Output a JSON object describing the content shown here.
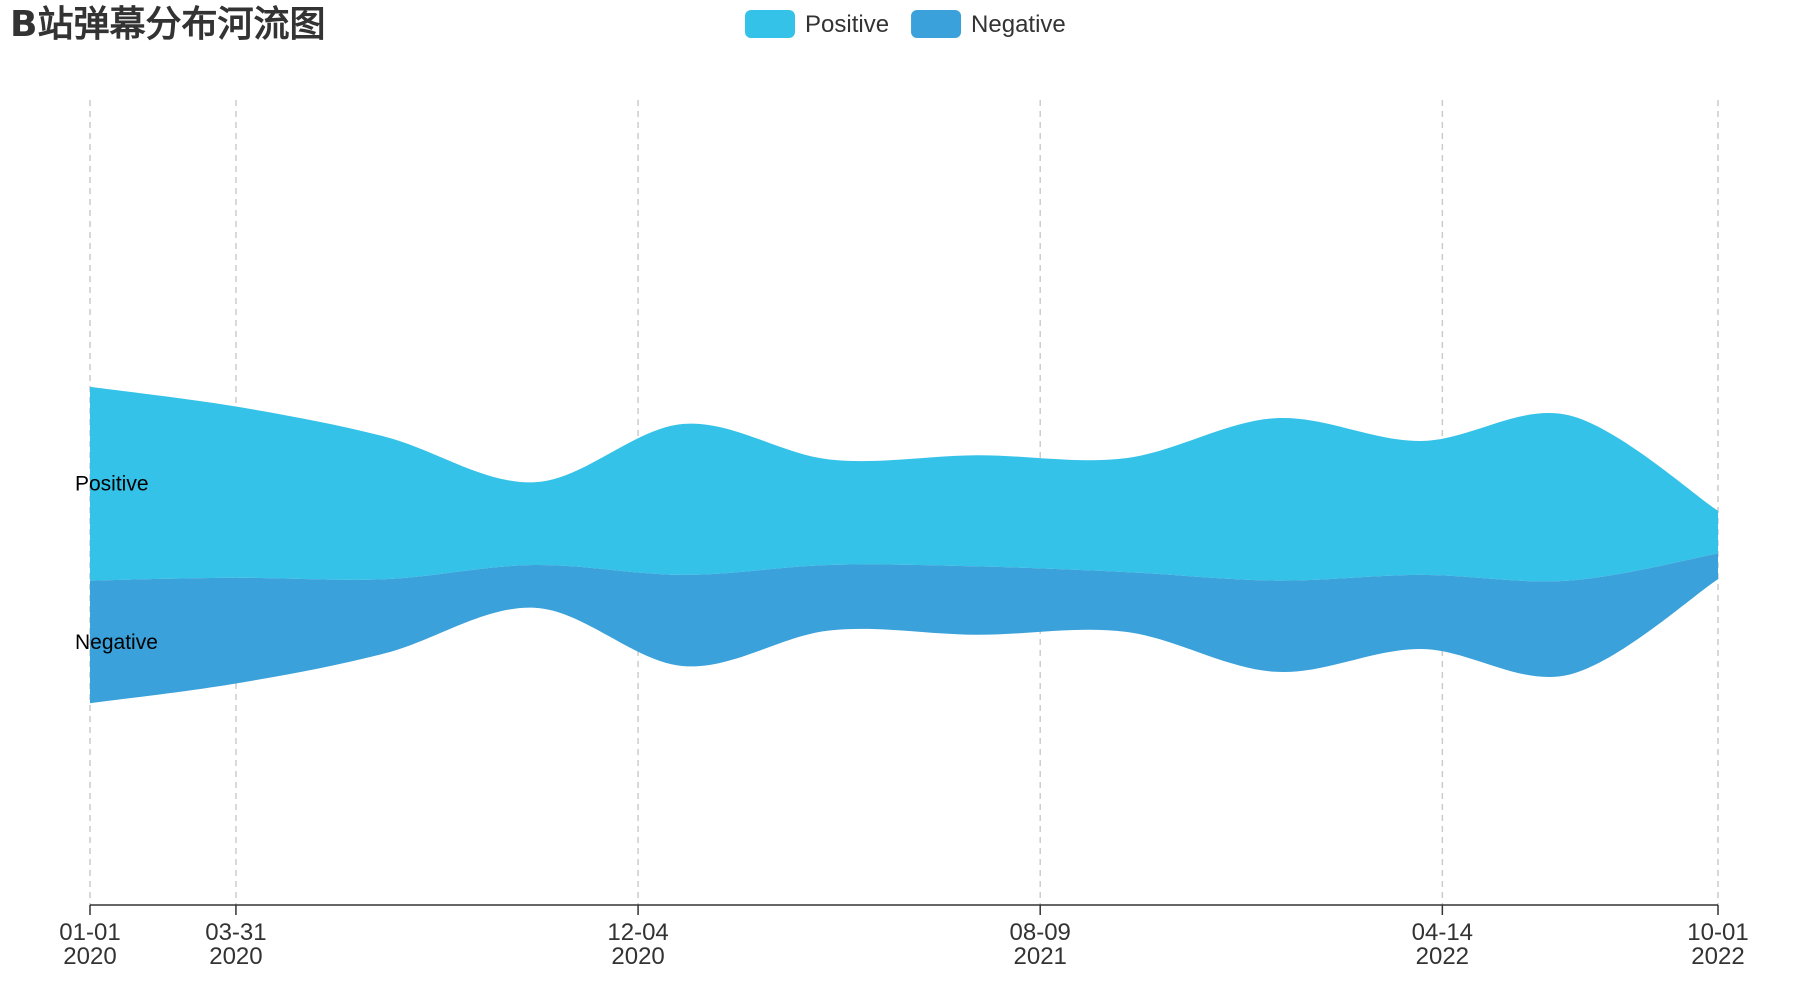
{
  "chart_data": {
    "type": "area",
    "subtype": "themeriver",
    "title": "B站弹幕分布河流图",
    "legend_placement": "top-center",
    "grid": false,
    "x_ticks": [
      {
        "date": "2020-01-01",
        "line1": "01-01",
        "line2": "2020"
      },
      {
        "date": "2020-03-31",
        "line1": "03-31",
        "line2": "2020"
      },
      {
        "date": "2020-12-04",
        "line1": "12-04",
        "line2": "2020"
      },
      {
        "date": "2021-08-09",
        "line1": "08-09",
        "line2": "2021"
      },
      {
        "date": "2022-04-14",
        "line1": "04-14",
        "line2": "2022"
      },
      {
        "date": "2022-10-01",
        "line1": "10-01",
        "line2": "2022"
      }
    ],
    "x": [
      "2020-01-01",
      "2020-04-01",
      "2020-07-01",
      "2020-10-01",
      "2021-01-01",
      "2021-04-01",
      "2021-07-01",
      "2021-10-01",
      "2022-01-01",
      "2022-04-01",
      "2022-07-01",
      "2022-10-01"
    ],
    "series": [
      {
        "name": "Positive",
        "color": "#35c2e8",
        "values": [
          340,
          300,
          250,
          145,
          265,
          185,
          195,
          200,
          285,
          235,
          290,
          75
        ]
      },
      {
        "name": "Negative",
        "color": "#3aa1da",
        "values": [
          215,
          185,
          130,
          75,
          160,
          115,
          120,
          105,
          160,
          130,
          165,
          45
        ]
      }
    ]
  }
}
